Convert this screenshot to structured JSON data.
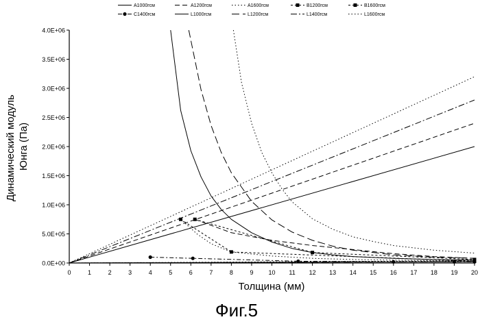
{
  "figure": {
    "caption": "Фиг.5"
  },
  "chart_data": {
    "type": "line",
    "title": "",
    "xlabel": "Толщина (мм)",
    "ylabel": [
      "Динамический модуль",
      "Юнга (Па)"
    ],
    "xlim": [
      0,
      20
    ],
    "ylim": [
      0,
      4000000
    ],
    "x_ticks": [
      "0",
      "1",
      "2",
      "3",
      "4",
      "5",
      "6",
      "7",
      "8",
      "9",
      "10",
      "11",
      "12",
      "13",
      "14",
      "15",
      "16",
      "17",
      "18",
      "19",
      "20"
    ],
    "y_ticks": [
      "0.0E+00",
      "5.0E+05",
      "1.0E+06",
      "1.5E+06",
      "2.0E+06",
      "2.5E+06",
      "3.0E+06",
      "3.5E+06",
      "4.0E+06"
    ],
    "grid": false,
    "legend_position": "top",
    "series": [
      {
        "name": "A1000гсм",
        "style": "solid",
        "x": [
          0,
          20
        ],
        "y": [
          0,
          2000000
        ]
      },
      {
        "name": "A1200гсм",
        "style": "dashed",
        "x": [
          0,
          20
        ],
        "y": [
          0,
          2400000
        ]
      },
      {
        "name": "A1600гсм",
        "style": "dotted",
        "x": [
          0,
          20
        ],
        "y": [
          0,
          3200000
        ]
      },
      {
        "name": "B1200гсм",
        "style": "dash-square",
        "x": [
          5.5,
          8,
          20
        ],
        "y": [
          750000,
          190000,
          30000
        ]
      },
      {
        "name": "B1600гсм",
        "style": "dash-square",
        "x": [
          6.2,
          12,
          20
        ],
        "y": [
          750000,
          180000,
          60000
        ]
      },
      {
        "name": "C1400гсм",
        "style": "dashdot-circle",
        "x": [
          4,
          6.1,
          11.3,
          16,
          19,
          20
        ],
        "y": [
          100000,
          80000,
          30000,
          20000,
          20000,
          20000
        ]
      },
      {
        "name": "L1000гсм",
        "style": "solid",
        "x": [
          0,
          20
        ],
        "y": [
          0,
          25000
        ]
      },
      {
        "name": "L1200гсм",
        "style": "longdash",
        "x": [
          0,
          20
        ],
        "y": [
          0,
          22000
        ]
      },
      {
        "name": "L1400гсм",
        "style": "dashdot",
        "x": [
          0,
          20
        ],
        "y": [
          0,
          2800000
        ]
      },
      {
        "name": "L1600гсм",
        "style": "dotted",
        "x": [
          0,
          20
        ],
        "y": [
          0,
          40000
        ]
      },
      {
        "name": "",
        "style": "solid",
        "x": [
          5,
          5.5,
          6,
          6.5,
          7,
          7.5,
          8,
          9,
          10,
          11,
          12,
          13,
          14,
          16,
          18,
          20
        ],
        "y": [
          4000000,
          2620000,
          1930000,
          1480000,
          1150000,
          920000,
          750000,
          520000,
          360000,
          250000,
          180000,
          140000,
          110000,
          80000,
          60000,
          50000
        ]
      },
      {
        "name": "",
        "style": "longdash",
        "x": [
          5.9,
          6.5,
          7,
          7.5,
          8,
          9,
          10,
          11,
          12,
          13,
          14,
          16,
          18,
          20
        ],
        "y": [
          4000000,
          2980000,
          2360000,
          1900000,
          1550000,
          1060000,
          740000,
          530000,
          390000,
          290000,
          220000,
          140000,
          100000,
          80000
        ]
      },
      {
        "name": "",
        "style": "dotted",
        "x": [
          8.1,
          8.5,
          9,
          9.5,
          10,
          10.5,
          11,
          12,
          13,
          14,
          15,
          16,
          18,
          20
        ],
        "y": [
          4000000,
          3100000,
          2400000,
          1900000,
          1550000,
          1270000,
          1050000,
          760000,
          580000,
          450000,
          370000,
          300000,
          220000,
          170000
        ]
      },
      {
        "name": "",
        "style": "dashed",
        "x": [
          6.2,
          8,
          10,
          12,
          14,
          16,
          18,
          20
        ],
        "y": [
          750000,
          520000,
          390000,
          300000,
          230000,
          160000,
          110000,
          80000
        ]
      },
      {
        "name": "",
        "style": "dotted",
        "x": [
          5.5,
          6.3,
          7,
          8,
          10,
          12,
          14,
          16,
          18,
          20
        ],
        "y": [
          750000,
          500000,
          330000,
          190000,
          120000,
          80000,
          60000,
          50000,
          40000,
          30000
        ]
      }
    ]
  }
}
